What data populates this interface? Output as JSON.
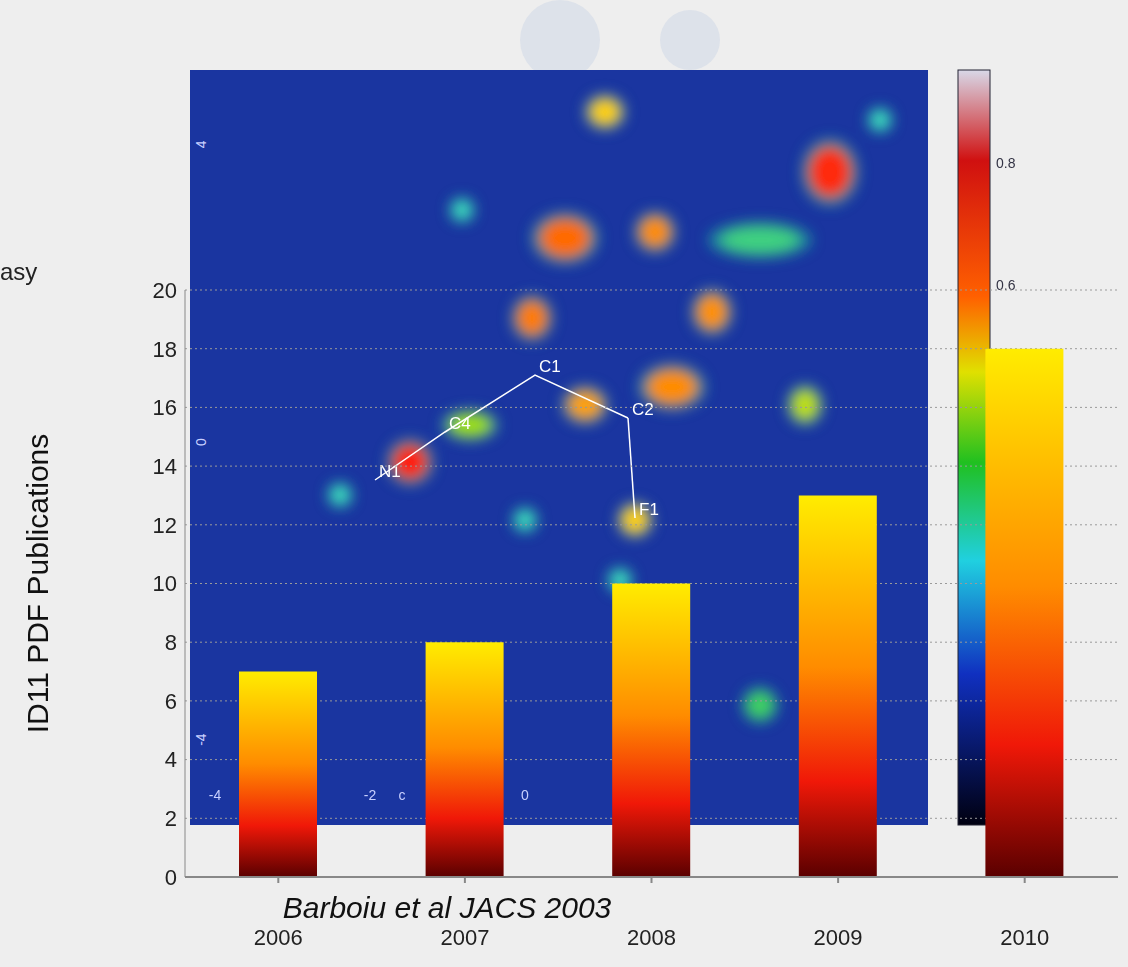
{
  "chart_data": {
    "type": "bar",
    "y_label": "ID11 PDF Publications",
    "caption": "Barboiu et al JACS 2003",
    "categories": [
      "2006",
      "2007",
      "2008",
      "2009",
      "2010"
    ],
    "values": [
      7,
      8,
      10,
      13,
      18
    ],
    "color": "#ff8c00",
    "ylim": [
      0,
      20
    ],
    "yticks": [
      0,
      2,
      4,
      6,
      8,
      10,
      12,
      14,
      16,
      18,
      20
    ],
    "grid": true
  },
  "background": {
    "text": "asy",
    "heatmap": {
      "yticks": [
        4,
        0,
        -4
      ],
      "xticks": [
        -4,
        -2,
        0
      ],
      "x_label": "c",
      "atoms": [
        "N1",
        "C4",
        "C1",
        "C2",
        "F1"
      ],
      "colorbar_ticks": [
        0.6,
        0.8
      ]
    }
  }
}
